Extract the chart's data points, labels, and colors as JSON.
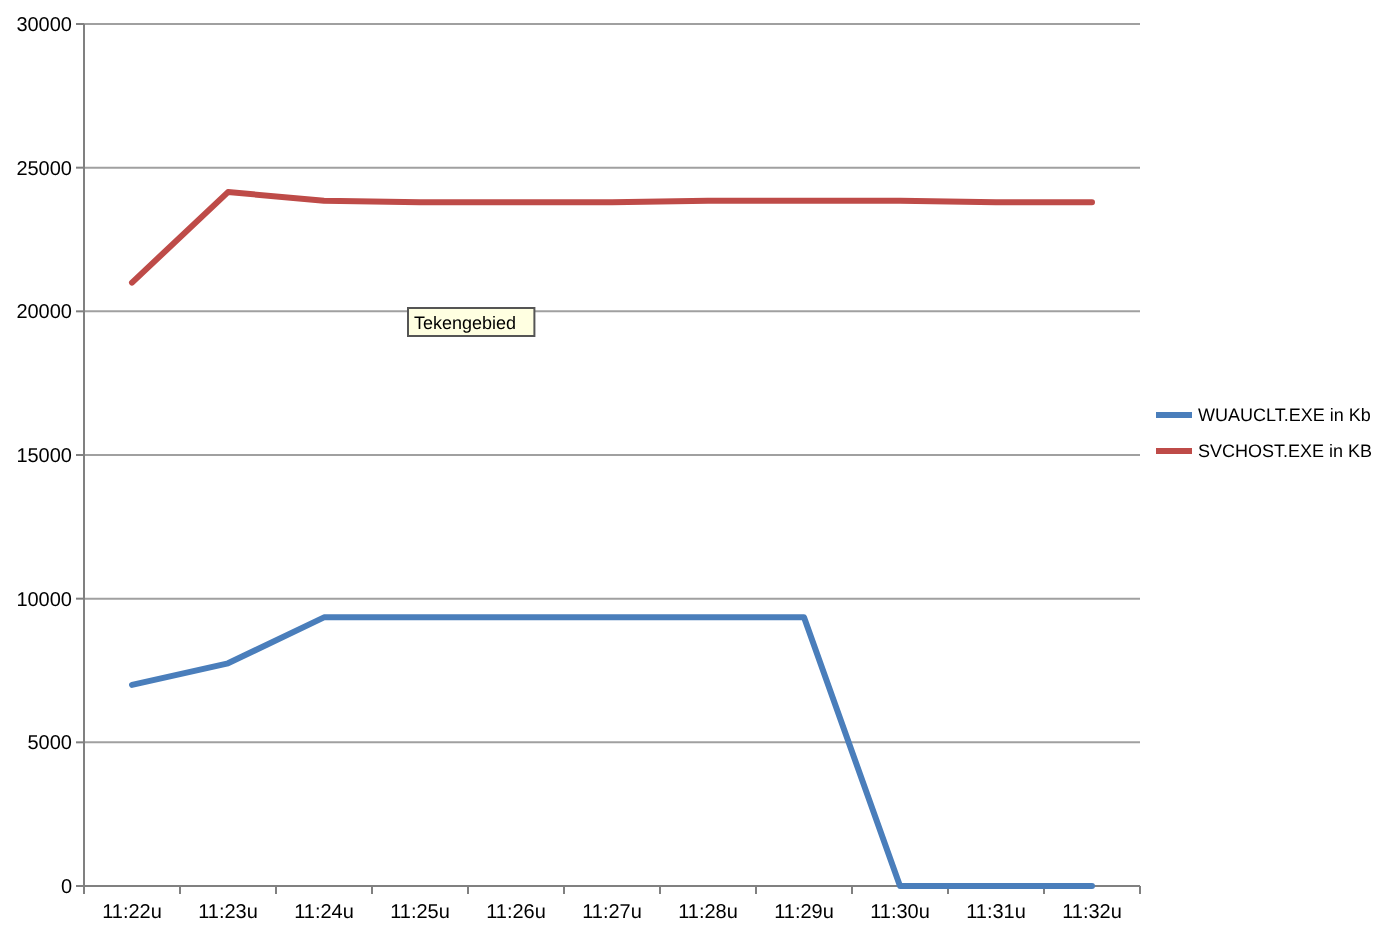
{
  "chart_data": {
    "type": "line",
    "categories": [
      "11:22u",
      "11:23u",
      "11:24u",
      "11:25u",
      "11:26u",
      "11:27u",
      "11:28u",
      "11:29u",
      "11:30u",
      "11:31u",
      "11:32u"
    ],
    "series": [
      {
        "name": "WUAUCLT.EXE in Kb",
        "color": "#4a7ebb",
        "values": [
          7000,
          7750,
          9350,
          9350,
          9350,
          9350,
          9350,
          9350,
          0,
          0,
          0
        ]
      },
      {
        "name": "SVCHOST.EXE in KB",
        "color": "#be4b48",
        "values": [
          21000,
          24150,
          23850,
          23800,
          23800,
          23800,
          23850,
          23850,
          23850,
          23800,
          23800
        ]
      }
    ],
    "ylim": [
      0,
      30000
    ],
    "yticks": [
      0,
      5000,
      10000,
      15000,
      20000,
      25000,
      30000
    ],
    "grid": "y",
    "legend": "right",
    "marker": "none",
    "line_style": "solid",
    "annotations": [
      "Tekengebied"
    ]
  }
}
